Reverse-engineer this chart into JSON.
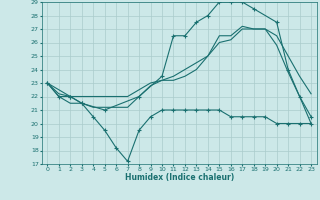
{
  "bg_color": "#cce8e8",
  "grid_color": "#aacccc",
  "line_color": "#1a7070",
  "xlabel": "Humidex (Indice chaleur)",
  "ylim": [
    17,
    29
  ],
  "xlim": [
    -0.5,
    23.5
  ],
  "yticks": [
    17,
    18,
    19,
    20,
    21,
    22,
    23,
    24,
    25,
    26,
    27,
    28,
    29
  ],
  "xticks": [
    0,
    1,
    2,
    3,
    4,
    5,
    6,
    7,
    8,
    9,
    10,
    11,
    12,
    13,
    14,
    15,
    16,
    17,
    18,
    19,
    20,
    21,
    22,
    23
  ],
  "line1_x": [
    0,
    1,
    2,
    3,
    4,
    5,
    6,
    7,
    8,
    9,
    10,
    11,
    12,
    13,
    14,
    15,
    16,
    17,
    18,
    19,
    20,
    21,
    22,
    23
  ],
  "line1_y": [
    23,
    22,
    22,
    21.5,
    20.5,
    19.5,
    18.2,
    17.2,
    19.5,
    20.5,
    21,
    21,
    21,
    21,
    21,
    21,
    20.5,
    20.5,
    20.5,
    20.5,
    20,
    20,
    20,
    20
  ],
  "line2_x": [
    0,
    1,
    2,
    3,
    4,
    5,
    6,
    7,
    8,
    9,
    10,
    11,
    12,
    13,
    14,
    15,
    16,
    17,
    18,
    19,
    20,
    21,
    22,
    23
  ],
  "line2_y": [
    23,
    22,
    21.5,
    21.5,
    21.2,
    21.2,
    21.2,
    21.2,
    22,
    22.8,
    23.2,
    23.2,
    23.5,
    24,
    25,
    26.5,
    26.5,
    27.2,
    27,
    27,
    25.8,
    23.8,
    22,
    20
  ],
  "line3_x": [
    0,
    1,
    2,
    3,
    4,
    5,
    6,
    7,
    8,
    9,
    10,
    11,
    12,
    13,
    14,
    15,
    16,
    17,
    18,
    19,
    20,
    21,
    22,
    23
  ],
  "line3_y": [
    23,
    22.2,
    22,
    22,
    22,
    22,
    22,
    22,
    22.5,
    23,
    23.2,
    23.5,
    24,
    24.5,
    25,
    26,
    26.2,
    27,
    27,
    27,
    26.5,
    25,
    23.5,
    22.2
  ],
  "line4_x": [
    0,
    2,
    3,
    5,
    8,
    10,
    11,
    12,
    13,
    14,
    15,
    16,
    17,
    18,
    20,
    21,
    22,
    23
  ],
  "line4_y": [
    23,
    22,
    21.5,
    21,
    22,
    23.5,
    26.5,
    26.5,
    27.5,
    28,
    29,
    29,
    29,
    28.5,
    27.5,
    24,
    22,
    20.5
  ]
}
